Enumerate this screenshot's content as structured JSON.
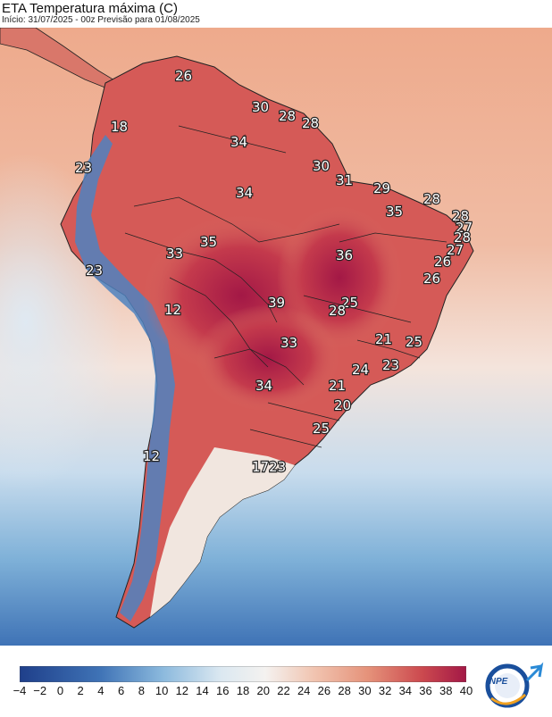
{
  "header": {
    "title": "ETA Temperatura máxima (C)",
    "subtitle": "Início: 31/07/2025 - 00z  Previsão para 01/08/2025"
  },
  "colorbar": {
    "ticks": [
      "−4",
      "−2",
      "0",
      "2",
      "4",
      "6",
      "8",
      "10",
      "12",
      "14",
      "16",
      "18",
      "20",
      "22",
      "24",
      "26",
      "28",
      "30",
      "32",
      "34",
      "36",
      "38",
      "40"
    ],
    "range": [
      -4,
      40
    ],
    "colors": {
      "cold": "#1f3f8a",
      "cool": "#5f98c8",
      "neutral": "#f4f2f0",
      "warm": "#eba482",
      "hot": "#cc4a4f",
      "hottest": "#a31846"
    }
  },
  "map": {
    "labels": [
      {
        "text": "26"
      },
      {
        "text": "18"
      },
      {
        "text": "30"
      },
      {
        "text": "28"
      },
      {
        "text": "28"
      },
      {
        "text": "34"
      },
      {
        "text": "23"
      },
      {
        "text": "30"
      },
      {
        "text": "31"
      },
      {
        "text": "29"
      },
      {
        "text": "28"
      },
      {
        "text": "34"
      },
      {
        "text": "35"
      },
      {
        "text": "28"
      },
      {
        "text": "27"
      },
      {
        "text": "28"
      },
      {
        "text": "35"
      },
      {
        "text": "33"
      },
      {
        "text": "27"
      },
      {
        "text": "36"
      },
      {
        "text": "26"
      },
      {
        "text": "23"
      },
      {
        "text": "26"
      },
      {
        "text": "39"
      },
      {
        "text": "25"
      },
      {
        "text": "28"
      },
      {
        "text": "12"
      },
      {
        "text": "21"
      },
      {
        "text": "25"
      },
      {
        "text": "33"
      },
      {
        "text": "24"
      },
      {
        "text": "23"
      },
      {
        "text": "34"
      },
      {
        "text": "21"
      },
      {
        "text": "20"
      },
      {
        "text": "25"
      },
      {
        "text": "12"
      },
      {
        "text": "1723"
      }
    ]
  },
  "logo": {
    "text": "INPE"
  }
}
